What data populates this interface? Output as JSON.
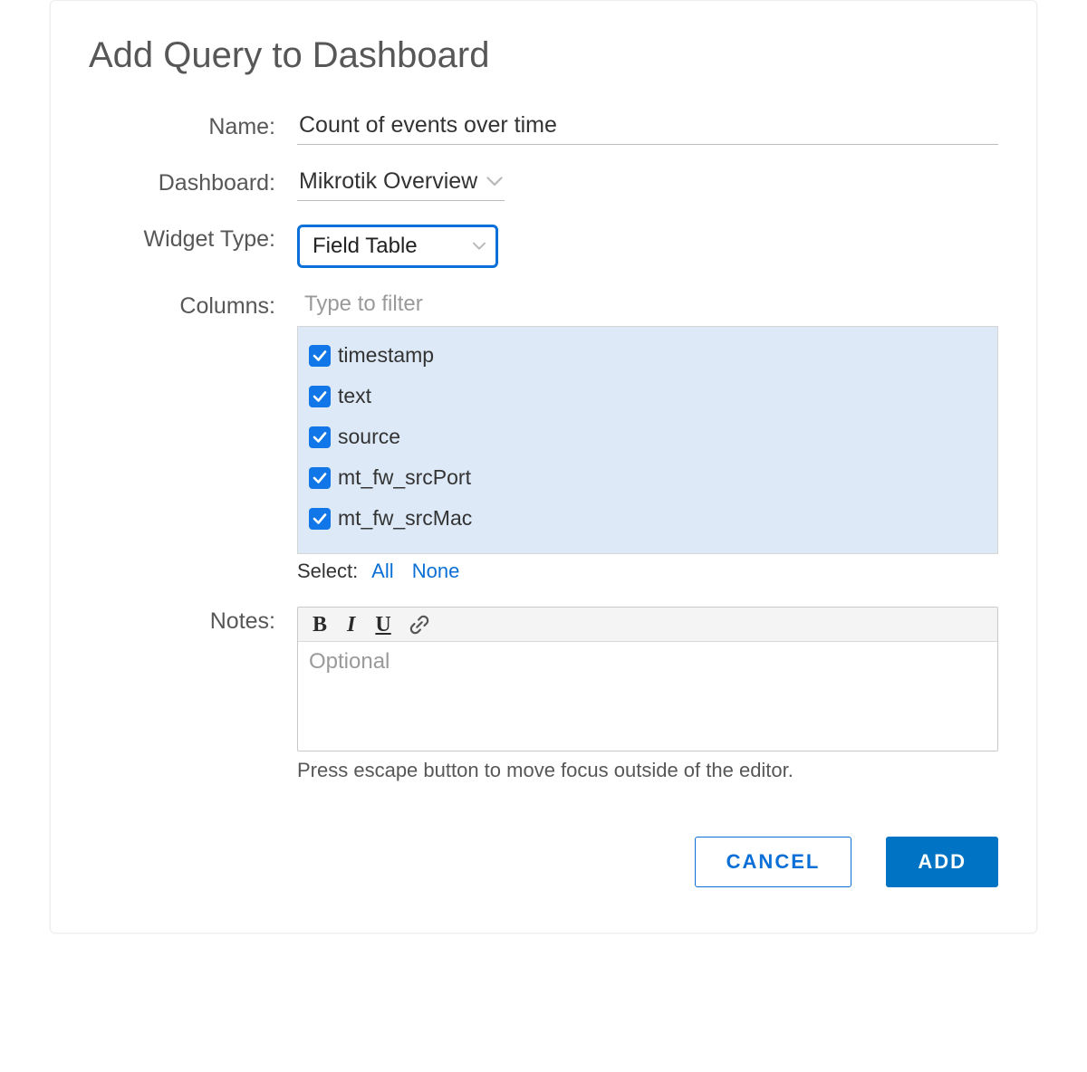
{
  "colors": {
    "accent": "#0a6fd6",
    "primary_button": "#0073c5",
    "checkbox_bg": "#1177e8",
    "list_bg": "#dde9f7",
    "text": "#333333",
    "muted": "#575757",
    "placeholder": "#9a9a9a",
    "border": "#c8c8c8"
  },
  "modal": {
    "title": "Add Query to Dashboard"
  },
  "form": {
    "name_label": "Name:",
    "name_value": "Count of events over time",
    "dashboard_label": "Dashboard:",
    "dashboard_value": "Mikrotik Overview",
    "widget_type_label": "Widget Type:",
    "widget_type_value": "Field Table",
    "columns_label": "Columns:",
    "columns_filter_placeholder": "Type to filter",
    "columns": [
      {
        "label": "timestamp",
        "checked": true
      },
      {
        "label": "text",
        "checked": true
      },
      {
        "label": "source",
        "checked": true
      },
      {
        "label": "mt_fw_srcPort",
        "checked": true
      },
      {
        "label": "mt_fw_srcMac",
        "checked": true
      }
    ],
    "select_prefix": "Select:",
    "select_all": "All",
    "select_none": "None",
    "notes_label": "Notes:",
    "notes_placeholder": "Optional",
    "notes_hint": "Press escape button to move focus outside of the editor."
  },
  "toolbar": {
    "bold": "B",
    "italic": "I",
    "underline": "U"
  },
  "footer": {
    "cancel": "CANCEL",
    "add": "ADD"
  }
}
